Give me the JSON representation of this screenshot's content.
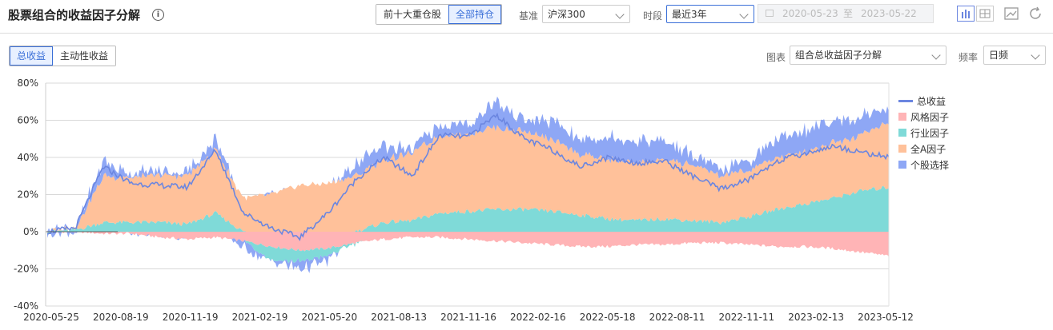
{
  "header": {
    "title": "股票组合的收益因子分解",
    "info_icon": "i",
    "holding_tabs": [
      "前十大重仓股",
      "全部持仓"
    ],
    "benchmark_label": "基准",
    "benchmark_value": "沪深300",
    "period_label": "时段",
    "period_value": "最近3年",
    "date_start": "2020-05-23",
    "date_sep": "至",
    "date_end": "2023-05-22"
  },
  "toolbar": {
    "return_tabs": [
      "总收益",
      "主动性收益"
    ],
    "chart_label": "图表",
    "chart_value": "组合总收益因子分解",
    "freq_label": "频率",
    "freq_value": "日频"
  },
  "colors": {
    "total": "#6b86e0",
    "style": "#ffb4b6",
    "industry": "#7fdad8",
    "allA": "#ffc19a",
    "stock": "#8ea7f5"
  },
  "chart_data": {
    "type": "area",
    "ylim": [
      -40,
      80
    ],
    "yticks": [
      "80%",
      "60%",
      "40%",
      "20%",
      "0%",
      "-20%",
      "-40%"
    ],
    "xticks": [
      "2020-05-25",
      "2020-08-19",
      "2020-11-19",
      "2021-02-19",
      "2021-05-20",
      "2021-08-13",
      "2021-11-16",
      "2022-02-16",
      "2022-05-18",
      "2022-08-11",
      "2022-11-11",
      "2023-02-13",
      "2023-05-12"
    ],
    "legend": [
      "总收益",
      "风格因子",
      "行业因子",
      "全A因子",
      "个股选择"
    ],
    "series": [
      {
        "name": "总收益",
        "values": [
          0,
          2,
          35,
          26,
          25,
          24,
          44,
          10,
          2,
          -3,
          10,
          28,
          40,
          30,
          52,
          51,
          63,
          50,
          44,
          35,
          40,
          37,
          38,
          30,
          23,
          28,
          38,
          42,
          46,
          43,
          40
        ]
      },
      {
        "name": "风格因子",
        "values": [
          0,
          0,
          -1,
          -1,
          -3,
          -4,
          -3,
          -5,
          -8,
          -10,
          -9,
          -6,
          -4,
          -3,
          -3,
          -4,
          -5,
          -6,
          -7,
          -8,
          -8,
          -7,
          -7,
          -6,
          -6,
          -7,
          -8,
          -8,
          -9,
          -11,
          -13
        ]
      },
      {
        "name": "行业因子",
        "values": [
          0,
          1,
          5,
          5,
          5,
          4,
          10,
          0,
          -7,
          -6,
          -4,
          0,
          5,
          6,
          10,
          11,
          12,
          12,
          11,
          9,
          7,
          6,
          7,
          6,
          5,
          8,
          12,
          15,
          18,
          22,
          24
        ]
      },
      {
        "name": "全A因子",
        "values": [
          0,
          1,
          25,
          24,
          25,
          26,
          34,
          18,
          20,
          25,
          26,
          30,
          34,
          36,
          42,
          42,
          44,
          42,
          38,
          33,
          32,
          31,
          32,
          30,
          25,
          25,
          28,
          28,
          30,
          30,
          35
        ]
      },
      {
        "name": "个股选择",
        "values": [
          0,
          0,
          8,
          2,
          2,
          2,
          6,
          -4,
          0,
          -4,
          -3,
          6,
          8,
          2,
          6,
          5,
          14,
          6,
          10,
          8,
          12,
          12,
          10,
          5,
          3,
          5,
          10,
          12,
          12,
          10,
          8
        ]
      }
    ]
  }
}
